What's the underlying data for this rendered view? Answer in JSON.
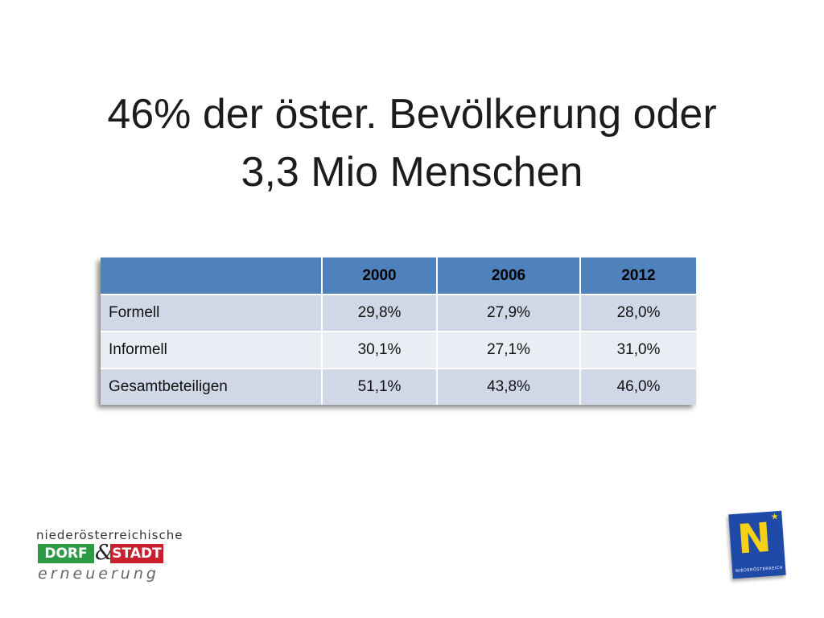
{
  "slide": {
    "title_line1": "46% der öster. Bevölkerung oder",
    "title_line2": "3,3 Mio Menschen"
  },
  "table": {
    "headers": [
      "",
      "2000",
      "2006",
      "2012"
    ],
    "rows": [
      {
        "label": "Formell",
        "values": [
          "29,8%",
          "27,9%",
          "28,0%"
        ]
      },
      {
        "label": "Informell",
        "values": [
          "30,1%",
          "27,1%",
          "31,0%"
        ]
      },
      {
        "label": "Gesamtbeteiligen",
        "values": [
          "51,1%",
          "43,8%",
          "46,0%"
        ]
      }
    ]
  },
  "logos": {
    "dorf_stadt": {
      "line1": "niederösterreichische",
      "dorf": "DORF",
      "amp": "&",
      "stadt": "STADT",
      "line3": "erneuerung"
    },
    "noe": {
      "letter": "N",
      "subtitle": "NIEDERÖSTERREICH"
    }
  },
  "colors": {
    "header_blue": "#4f81bd",
    "row_odd": "#d0d8e8",
    "row_even": "#e9edf4",
    "dorf_green": "#2f9a45",
    "stadt_red": "#c8202f",
    "noe_blue": "#1f4aa8",
    "noe_yellow": "#f7d117"
  }
}
